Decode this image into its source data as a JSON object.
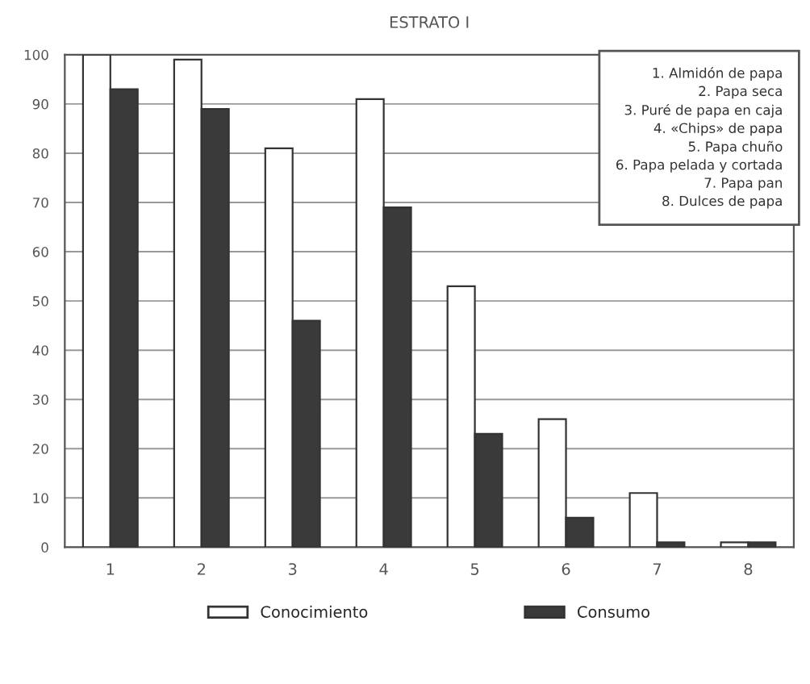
{
  "chart_data": {
    "type": "bar",
    "title": "ESTRATO I",
    "categories": [
      "1",
      "2",
      "3",
      "4",
      "5",
      "6",
      "7",
      "8"
    ],
    "series": [
      {
        "name": "Conocimiento",
        "color": "#ffffff",
        "values": [
          100,
          99,
          81,
          91,
          53,
          26,
          11,
          1
        ]
      },
      {
        "name": "Consumo",
        "color": "#3a3a3a",
        "values": [
          93,
          89,
          46,
          69,
          23,
          6,
          1,
          1
        ]
      }
    ],
    "ylim": [
      0,
      100
    ],
    "yticks": [
      0,
      10,
      20,
      30,
      40,
      50,
      60,
      70,
      80,
      90,
      100
    ],
    "grid": "y",
    "legend": "bottom",
    "annotations": [
      "1. Almidón de papa",
      "2. Papa seca",
      "3. Puré de papa en caja",
      "4. «Chips» de papa",
      "5. Papa chuño",
      "6. Papa pelada y cortada",
      "7. Papa pan",
      "8. Dulces de papa"
    ]
  }
}
